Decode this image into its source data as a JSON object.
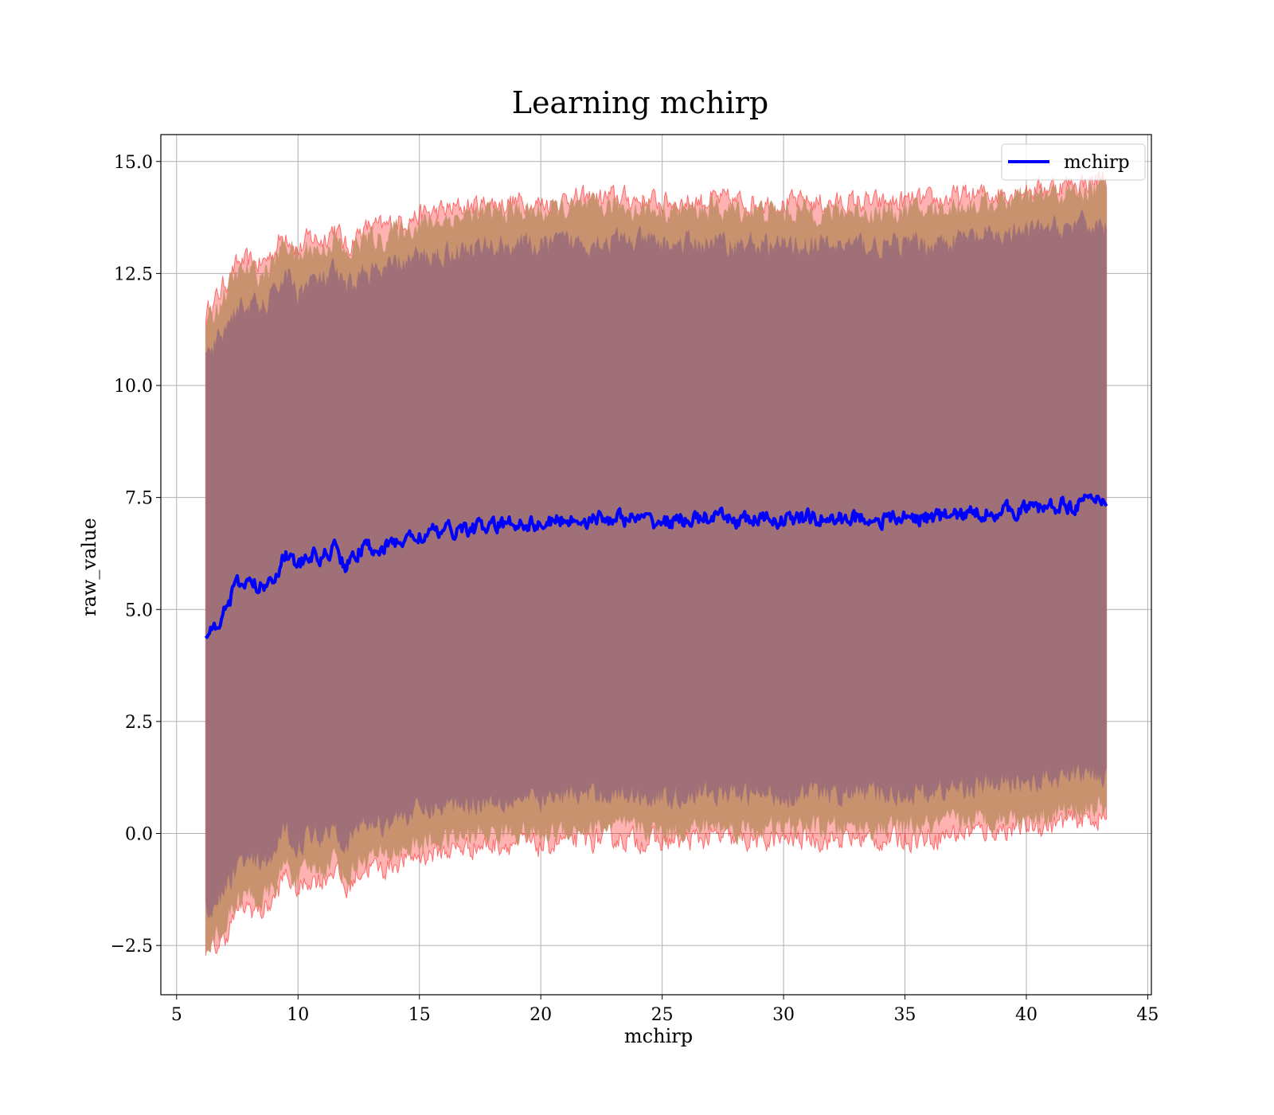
{
  "chart_data": {
    "type": "line",
    "title": "Learning mchirp",
    "xlabel": "mchirp",
    "ylabel": "raw_value",
    "xlim": [
      4.35,
      45.15
    ],
    "ylim": [
      -3.6,
      15.6
    ],
    "xticks": [
      5,
      10,
      15,
      20,
      25,
      30,
      35,
      40,
      45
    ],
    "xtick_labels": [
      "5",
      "10",
      "15",
      "20",
      "25",
      "30",
      "35",
      "40",
      "45"
    ],
    "yticks": [
      -2.5,
      0.0,
      2.5,
      5.0,
      7.5,
      10.0,
      12.5,
      15.0
    ],
    "ytick_labels": [
      "−2.5",
      "0.0",
      "2.5",
      "5.0",
      "7.5",
      "10.0",
      "12.5",
      "15.0"
    ],
    "grid": true,
    "legend": {
      "position": "top-right",
      "entries": [
        "mchirp"
      ]
    },
    "series": [
      {
        "name": "mchirp",
        "type": "line",
        "color": "#0000ff",
        "x": [
          6.2,
          6.5,
          7.0,
          7.5,
          8.0,
          8.5,
          9.0,
          9.5,
          10.0,
          10.5,
          11.0,
          11.5,
          12.0,
          12.5,
          13.0,
          13.5,
          14.0,
          15.0,
          16.0,
          17.0,
          18.0,
          19.0,
          20.0,
          21.0,
          22.0,
          23.0,
          24.0,
          25.0,
          26.0,
          27.0,
          28.0,
          29.0,
          30.0,
          31.0,
          32.0,
          33.0,
          34.0,
          35.0,
          36.0,
          37.0,
          38.0,
          39.0,
          40.0,
          41.0,
          42.0,
          43.0,
          43.3
        ],
        "y": [
          4.45,
          4.6,
          5.0,
          5.55,
          5.6,
          5.5,
          5.75,
          6.25,
          5.95,
          6.2,
          6.15,
          6.4,
          5.95,
          6.3,
          6.4,
          6.35,
          6.5,
          6.65,
          6.75,
          6.8,
          6.85,
          6.95,
          6.9,
          7.0,
          7.0,
          7.05,
          7.0,
          6.95,
          7.0,
          7.05,
          7.0,
          7.0,
          7.0,
          7.05,
          7.0,
          7.05,
          7.0,
          7.05,
          7.05,
          7.1,
          7.15,
          7.2,
          7.25,
          7.3,
          7.35,
          7.45,
          7.45
        ]
      },
      {
        "name": "",
        "type": "band",
        "color": "#ff0000",
        "opacity": 0.3,
        "x": [
          6.2,
          6.5,
          7.0,
          7.5,
          8.0,
          8.5,
          9.0,
          9.5,
          10.0,
          10.5,
          11.0,
          11.5,
          12.0,
          12.5,
          13.0,
          13.5,
          14.0,
          15.0,
          16.0,
          17.0,
          18.0,
          19.0,
          20.0,
          21.0,
          22.0,
          23.0,
          24.0,
          25.0,
          26.0,
          27.0,
          28.0,
          29.0,
          30.0,
          31.0,
          32.0,
          33.0,
          34.0,
          35.0,
          36.0,
          37.0,
          38.0,
          39.0,
          40.0,
          41.0,
          42.0,
          43.0,
          43.3
        ],
        "upper": [
          11.6,
          11.8,
          12.3,
          12.7,
          12.75,
          12.7,
          13.0,
          13.45,
          13.0,
          13.3,
          13.25,
          13.55,
          13.05,
          13.4,
          13.55,
          13.5,
          13.65,
          13.8,
          13.9,
          14.0,
          14.05,
          14.1,
          14.05,
          14.15,
          14.15,
          14.2,
          14.15,
          14.1,
          14.1,
          14.15,
          14.1,
          14.1,
          14.05,
          14.1,
          14.05,
          14.1,
          14.05,
          14.1,
          14.1,
          14.2,
          14.25,
          14.3,
          14.35,
          14.45,
          14.5,
          14.6,
          14.65
        ],
        "lower": [
          -2.7,
          -2.6,
          -2.3,
          -1.7,
          -1.65,
          -1.75,
          -1.5,
          -0.9,
          -1.3,
          -1.0,
          -1.05,
          -0.75,
          -1.3,
          -0.85,
          -0.75,
          -0.8,
          -0.65,
          -0.5,
          -0.4,
          -0.3,
          -0.25,
          -0.2,
          -0.3,
          -0.15,
          -0.15,
          -0.1,
          -0.15,
          -0.2,
          -0.15,
          -0.1,
          -0.15,
          -0.15,
          -0.15,
          -0.1,
          -0.15,
          -0.1,
          -0.15,
          -0.1,
          -0.1,
          0.0,
          0.05,
          0.1,
          0.15,
          0.2,
          0.3,
          0.35,
          0.3
        ]
      },
      {
        "name": "",
        "type": "band",
        "color": "#c8926f",
        "x": [
          6.2,
          6.5,
          7.0,
          7.5,
          8.0,
          8.5,
          9.0,
          9.5,
          10.0,
          10.5,
          11.0,
          11.5,
          12.0,
          12.5,
          13.0,
          13.5,
          14.0,
          15.0,
          16.0,
          17.0,
          18.0,
          19.0,
          20.0,
          21.0,
          22.0,
          23.0,
          24.0,
          25.0,
          26.0,
          27.0,
          28.0,
          29.0,
          30.0,
          31.0,
          32.0,
          33.0,
          34.0,
          35.0,
          36.0,
          37.0,
          38.0,
          39.0,
          40.0,
          41.0,
          42.0,
          43.0,
          43.3
        ],
        "upper": [
          11.35,
          11.55,
          12.05,
          12.5,
          12.55,
          12.45,
          12.75,
          13.25,
          12.8,
          13.1,
          13.0,
          13.3,
          12.85,
          13.2,
          13.3,
          13.25,
          13.45,
          13.6,
          13.7,
          13.8,
          13.85,
          13.9,
          13.85,
          13.95,
          13.95,
          14.0,
          13.95,
          13.9,
          13.9,
          13.95,
          13.9,
          13.9,
          13.85,
          13.9,
          13.85,
          13.9,
          13.85,
          13.9,
          13.9,
          14.0,
          14.05,
          14.1,
          14.15,
          14.25,
          14.3,
          14.4,
          14.45
        ],
        "lower": [
          -2.45,
          -2.35,
          -2.05,
          -1.45,
          -1.4,
          -1.5,
          -1.25,
          -0.65,
          -1.05,
          -0.75,
          -0.8,
          -0.5,
          -1.05,
          -0.6,
          -0.5,
          -0.55,
          -0.4,
          -0.25,
          -0.15,
          -0.05,
          0.0,
          0.05,
          -0.05,
          0.1,
          0.1,
          0.15,
          0.1,
          0.05,
          0.1,
          0.15,
          0.1,
          0.1,
          0.1,
          0.15,
          0.1,
          0.15,
          0.1,
          0.15,
          0.15,
          0.25,
          0.3,
          0.35,
          0.4,
          0.45,
          0.55,
          0.6,
          0.55
        ]
      },
      {
        "name": "",
        "type": "band",
        "color": "#a07078",
        "x": [
          6.2,
          6.5,
          7.0,
          7.5,
          8.0,
          8.5,
          9.0,
          9.5,
          10.0,
          10.5,
          11.0,
          11.5,
          12.0,
          12.5,
          13.0,
          13.5,
          14.0,
          15.0,
          16.0,
          17.0,
          18.0,
          19.0,
          20.0,
          21.0,
          22.0,
          23.0,
          24.0,
          25.0,
          26.0,
          27.0,
          28.0,
          29.0,
          30.0,
          31.0,
          32.0,
          33.0,
          34.0,
          35.0,
          36.0,
          37.0,
          38.0,
          39.0,
          40.0,
          41.0,
          42.0,
          43.0,
          43.3
        ],
        "upper": [
          10.6,
          10.8,
          11.3,
          11.75,
          11.8,
          11.7,
          12.0,
          12.55,
          12.05,
          12.35,
          12.3,
          12.55,
          12.1,
          12.45,
          12.55,
          12.5,
          12.7,
          12.85,
          12.95,
          13.05,
          13.1,
          13.15,
          13.1,
          13.2,
          13.2,
          13.25,
          13.2,
          13.15,
          13.15,
          13.2,
          13.15,
          13.15,
          13.1,
          13.15,
          13.1,
          13.15,
          13.1,
          13.15,
          13.15,
          13.25,
          13.3,
          13.35,
          13.4,
          13.5,
          13.55,
          13.6,
          13.55
        ],
        "lower": [
          -1.7,
          -1.6,
          -1.3,
          -0.7,
          -0.65,
          -0.75,
          -0.5,
          0.1,
          -0.3,
          0.0,
          -0.05,
          0.25,
          -0.3,
          0.15,
          0.25,
          0.2,
          0.35,
          0.5,
          0.6,
          0.7,
          0.75,
          0.8,
          0.7,
          0.85,
          0.85,
          0.9,
          0.85,
          0.8,
          0.85,
          0.9,
          0.85,
          0.85,
          0.85,
          0.9,
          0.85,
          0.9,
          0.85,
          0.9,
          0.9,
          1.0,
          1.05,
          1.1,
          1.15,
          1.2,
          1.3,
          1.35,
          1.3
        ]
      }
    ]
  }
}
